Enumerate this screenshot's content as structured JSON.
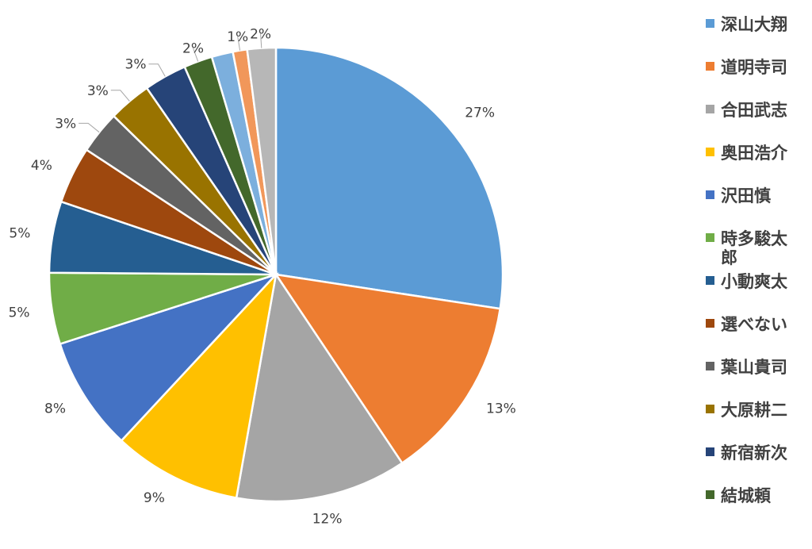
{
  "chart_data": {
    "type": "pie",
    "legend_position": "right",
    "slices": [
      {
        "name": "深山大翔",
        "value": 27,
        "label": "27%",
        "color": "#5B9BD5"
      },
      {
        "name": "道明寺司",
        "value": 13,
        "label": "13%",
        "color": "#ED7D31"
      },
      {
        "name": "合田武志",
        "value": 12,
        "label": "12%",
        "color": "#A5A5A5"
      },
      {
        "name": "奥田浩介",
        "value": 9,
        "label": "9%",
        "color": "#FFC000"
      },
      {
        "name": "沢田慎",
        "value": 8,
        "label": "8%",
        "color": "#4472C4"
      },
      {
        "name": "時多駿太郎",
        "value": 5,
        "label": "5%",
        "color": "#70AD47"
      },
      {
        "name": "小動爽太",
        "value": 5,
        "label": "5%",
        "color": "#255E91"
      },
      {
        "name": "選べない",
        "value": 4,
        "label": "4%",
        "color": "#9E480E"
      },
      {
        "name": "葉山貴司",
        "value": 3,
        "label": "3%",
        "color": "#636363"
      },
      {
        "name": "大原耕二",
        "value": 3,
        "label": "3%",
        "color": "#997300"
      },
      {
        "name": "新宿新次",
        "value": 3,
        "label": "3%",
        "color": "#264478"
      },
      {
        "name": "結城頼",
        "value": 2,
        "label": "2%",
        "color": "#43682B"
      },
      {
        "name": "",
        "value": 1.5,
        "label": "",
        "color": "#7CAFDD"
      },
      {
        "name": "",
        "value": 1,
        "label": "1%",
        "color": "#F1975A"
      },
      {
        "name": "",
        "value": 2,
        "label": "2%",
        "color": "#B7B7B7"
      }
    ]
  }
}
